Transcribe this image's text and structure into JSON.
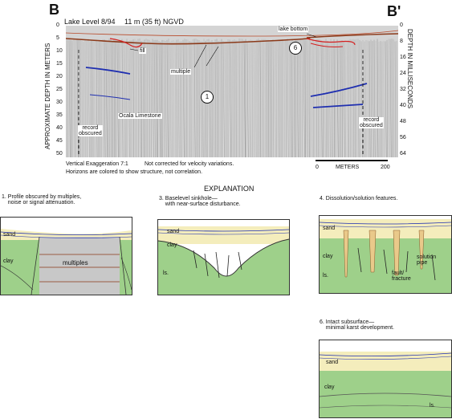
{
  "profile": {
    "left_label": "B",
    "right_label": "B'",
    "header": "Lake Level 8/94",
    "lake_level": "11 m (35 ft) NGVD",
    "left_axis_title": "APPROXIMATE DEPTH IN METERS",
    "right_axis_title": "DEPTH IN MILLISECONDS",
    "left_ticks": [
      "0",
      "5",
      "10",
      "15",
      "20",
      "25",
      "30",
      "35",
      "40",
      "45",
      "50"
    ],
    "right_ticks": [
      "0",
      "8",
      "16",
      "24",
      "32",
      "40",
      "48",
      "56",
      "64"
    ],
    "labels": {
      "lake_bottom": "lake bottom",
      "fill": "fill",
      "multiple": "multiple",
      "limestone": "Ocala Limestone",
      "record_left": "record\nobscured",
      "record_right": "record\nobscured",
      "callout_1": "1",
      "callout_6": "6"
    },
    "notes": {
      "exaggeration": "Vertical Exaggeration 7:1",
      "velocity": "Not corrected for velocity variations.",
      "horizons": "Horizons are colored to show structure, not correlation."
    },
    "scale": {
      "start": "0",
      "unit": "METERS",
      "end": "200"
    }
  },
  "explanation": {
    "title": "EXPLANATION",
    "items": [
      {
        "caption": "1. Profile obscured by multiples,\n    noise or signal attenuation.",
        "sand": "sand",
        "clay": "clay",
        "extra": "multiples"
      },
      {
        "caption": "3. Baselevel sinkhole—\n    with near-surface disturbance.",
        "sand": "sand",
        "clay": "clay",
        "ls": "ls."
      },
      {
        "caption": "4. Dissolution/solution features.",
        "sand": "sand",
        "clay": "clay",
        "ls": "ls.",
        "fault": "fault/\nfracture",
        "pipe": "solution\npipe"
      },
      {
        "caption": "6. Intact subsurface—\n    minimal karst development.",
        "sand": "sand",
        "clay": "clay",
        "ls": "ls."
      }
    ]
  },
  "colors": {
    "sand": "#f4edbc",
    "clay": "#9ed08a",
    "multiples": "#c8c8c8",
    "horizon_blue": "#1f2fb0",
    "horizon_red": "#d42020",
    "bottom_brown": "#8b3a1a"
  }
}
